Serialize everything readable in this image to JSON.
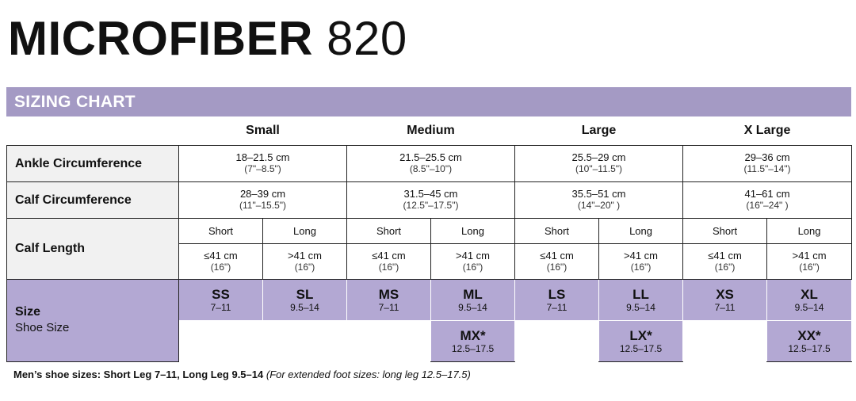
{
  "product": {
    "name": "MICROFIBER",
    "model": "820"
  },
  "banner": "SIZING CHART",
  "sizes": [
    "Small",
    "Medium",
    "Large",
    "X Large"
  ],
  "rows": {
    "ankle": {
      "label": "Ankle Circumference",
      "values": [
        {
          "cm": "18–21.5 cm",
          "in": "(7\"–8.5\")"
        },
        {
          "cm": "21.5–25.5 cm",
          "in": "(8.5\"–10\")"
        },
        {
          "cm": "25.5–29 cm",
          "in": "(10\"–11.5\")"
        },
        {
          "cm": "29–36 cm",
          "in": "(11.5\"–14\")"
        }
      ]
    },
    "calf": {
      "label": "Calf Circumference",
      "values": [
        {
          "cm": "28–39 cm",
          "in": "(11\"–15.5\")"
        },
        {
          "cm": "31.5–45 cm",
          "in": "(12.5\"–17.5\")"
        },
        {
          "cm": "35.5–51 cm",
          "in": "(14\"–20\" )"
        },
        {
          "cm": "41–61 cm",
          "in": "(16\"–24\" )"
        }
      ]
    },
    "length": {
      "label": "Calf Length",
      "types": [
        "Short",
        "Long",
        "Short",
        "Long",
        "Short",
        "Long",
        "Short",
        "Long"
      ],
      "values": [
        {
          "cm": "≤41 cm",
          "in": "(16\")"
        },
        {
          "cm": ">41 cm",
          "in": "(16\")"
        },
        {
          "cm": "≤41 cm",
          "in": "(16\")"
        },
        {
          "cm": ">41 cm",
          "in": "(16\")"
        },
        {
          "cm": "≤41 cm",
          "in": "(16\")"
        },
        {
          "cm": ">41 cm",
          "in": "(16\")"
        },
        {
          "cm": "≤41 cm",
          "in": "(16\")"
        },
        {
          "cm": ">41 cm",
          "in": "(16\")"
        }
      ]
    }
  },
  "size_row": {
    "label": "Size",
    "sublabel": "Shoe Size",
    "codes": [
      {
        "code": "SS",
        "shoe": "7–11"
      },
      {
        "code": "SL",
        "shoe": "9.5–14"
      },
      {
        "code": "MS",
        "shoe": "7–11"
      },
      {
        "code": "ML",
        "shoe": "9.5–14"
      },
      {
        "code": "LS",
        "shoe": "7–11"
      },
      {
        "code": "LL",
        "shoe": "9.5–14"
      },
      {
        "code": "XS",
        "shoe": "7–11"
      },
      {
        "code": "XL",
        "shoe": "9.5–14"
      }
    ],
    "extended": [
      {
        "code": "MX*",
        "shoe": "12.5–17.5"
      },
      {
        "code": "LX*",
        "shoe": "12.5–17.5"
      },
      {
        "code": "XX*",
        "shoe": "12.5–17.5"
      }
    ]
  },
  "footnote": {
    "bold": "Men’s shoe sizes: Short Leg 7–11, Long Leg 9.5–14",
    "italic": "(For extended foot sizes: long leg 12.5–17.5)"
  },
  "colors": {
    "banner": "#a49ac4",
    "size_cells": "#b3a8d3",
    "label_bg": "#f1f1f1"
  }
}
